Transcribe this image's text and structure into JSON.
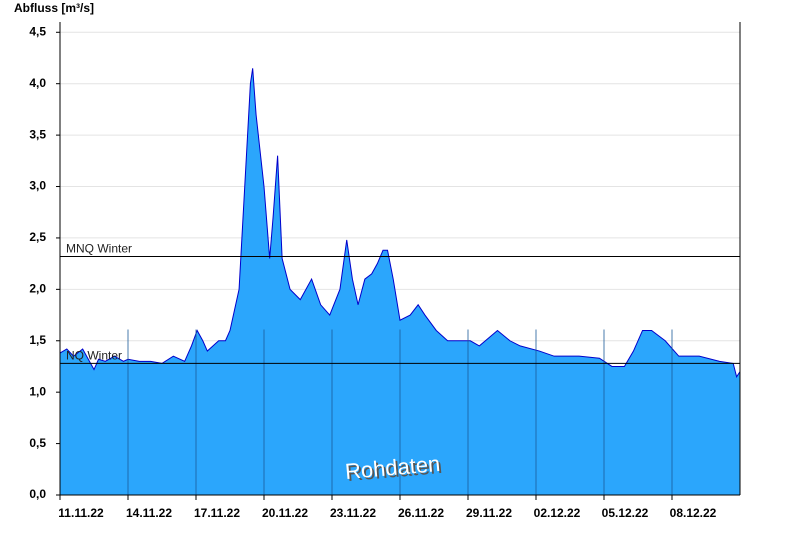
{
  "chart_data": {
    "type": "area",
    "y_label": "Abfluss [m³/s]",
    "annotation": "Rohdaten",
    "color": "#2ba6fc",
    "line_color": "#0000cc",
    "grid": true,
    "x": [
      0,
      0.3,
      0.6,
      1.0,
      1.3,
      1.5,
      1.7,
      2.0,
      2.4,
      2.8,
      3.0,
      3.5,
      4.0,
      4.5,
      5.0,
      5.5,
      5.8,
      6.05,
      6.3,
      6.5,
      7.0,
      7.3,
      7.5,
      7.7,
      7.9,
      8.15,
      8.4,
      8.5,
      8.65,
      8.8,
      9.0,
      9.25,
      9.4,
      9.6,
      9.8,
      10.15,
      10.6,
      11.1,
      11.5,
      11.9,
      12.35,
      12.65,
      12.9,
      13.15,
      13.45,
      13.75,
      14.0,
      14.25,
      14.45,
      14.7,
      15.0,
      15.45,
      15.8,
      16.1,
      16.6,
      17.1,
      18.1,
      18.5,
      19.3,
      19.85,
      20.3,
      21.15,
      21.8,
      22.9,
      23.8,
      24.35,
      24.9,
      25.3,
      25.7,
      26.1,
      26.7,
      27.3,
      28.2,
      29.1,
      29.7,
      29.85,
      30
    ],
    "values": [
      1.38,
      1.42,
      1.35,
      1.42,
      1.3,
      1.22,
      1.32,
      1.3,
      1.35,
      1.3,
      1.32,
      1.3,
      1.3,
      1.28,
      1.35,
      1.3,
      1.45,
      1.6,
      1.5,
      1.4,
      1.5,
      1.5,
      1.6,
      1.8,
      2.0,
      3.0,
      4.0,
      4.15,
      3.7,
      3.4,
      3.0,
      2.3,
      2.7,
      3.3,
      2.3,
      2.0,
      1.9,
      2.1,
      1.85,
      1.75,
      2.0,
      2.48,
      2.1,
      1.85,
      2.1,
      2.15,
      2.25,
      2.38,
      2.38,
      2.1,
      1.7,
      1.75,
      1.85,
      1.75,
      1.6,
      1.5,
      1.5,
      1.45,
      1.6,
      1.5,
      1.45,
      1.4,
      1.35,
      1.35,
      1.33,
      1.25,
      1.25,
      1.4,
      1.6,
      1.6,
      1.5,
      1.35,
      1.35,
      1.3,
      1.28,
      1.15,
      1.2
    ],
    "xlim": [
      0,
      30
    ],
    "xticks": [
      {
        "value": 0,
        "label": "11.11.22"
      },
      {
        "value": 3,
        "label": "14.11.22"
      },
      {
        "value": 6,
        "label": "17.11.22"
      },
      {
        "value": 9,
        "label": "20.11.22"
      },
      {
        "value": 12,
        "label": "23.11.22"
      },
      {
        "value": 15,
        "label": "26.11.22"
      },
      {
        "value": 18,
        "label": "29.11.22"
      },
      {
        "value": 21,
        "label": "02.12.22"
      },
      {
        "value": 24,
        "label": "05.12.22"
      },
      {
        "value": 27,
        "label": "08.12.22"
      }
    ],
    "ylim": [
      0,
      4.6
    ],
    "yticks": [
      {
        "value": 0,
        "label": "0,0"
      },
      {
        "value": 0.5,
        "label": "0,5"
      },
      {
        "value": 1,
        "label": "1,0"
      },
      {
        "value": 1.5,
        "label": "1,5"
      },
      {
        "value": 2,
        "label": "2,0"
      },
      {
        "value": 2.5,
        "label": "2,5"
      },
      {
        "value": 3,
        "label": "3,0"
      },
      {
        "value": 3.5,
        "label": "3,5"
      },
      {
        "value": 4,
        "label": "4,0"
      },
      {
        "value": 4.5,
        "label": "4,5"
      }
    ],
    "reference_lines": [
      {
        "label": "MNQ Winter",
        "value": 2.32
      },
      {
        "label": "NQ Winter",
        "value": 1.28
      }
    ]
  }
}
